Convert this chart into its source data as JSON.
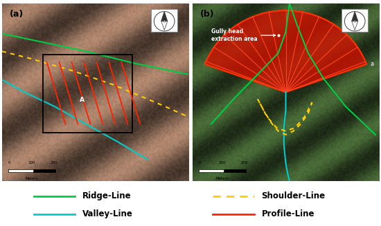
{
  "figsize": [
    5.5,
    3.27
  ],
  "dpi": 100,
  "bg_color": "#ffffff",
  "legend_items": [
    {
      "label": "Ridge-Line",
      "color": "#00cc44",
      "linestyle": "solid",
      "linewidth": 2.0
    },
    {
      "label": "Valley-Line",
      "color": "#00cccc",
      "linestyle": "solid",
      "linewidth": 2.0
    },
    {
      "label": "Shoulder-Line",
      "color": "#ffcc00",
      "linestyle": "dashed",
      "linewidth": 2.0
    },
    {
      "label": "Profile-Line",
      "color": "#ff2200",
      "linestyle": "solid",
      "linewidth": 2.0
    }
  ],
  "panel_a_label": "(a)",
  "panel_b_label": "(b)",
  "legend_font_size": 8.5,
  "panel_label_font_size": 9
}
